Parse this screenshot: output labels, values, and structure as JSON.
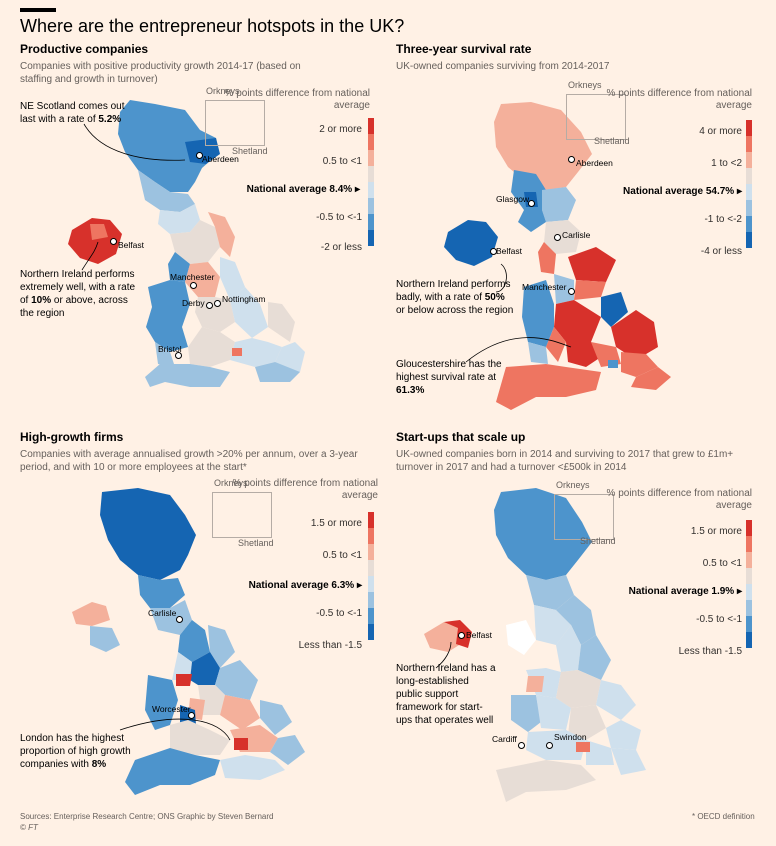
{
  "main_title": "Where are the entrepreneur hotspots in the UK?",
  "colors": {
    "red_dark": "#d7312b",
    "red_mid": "#ee7561",
    "red_light": "#f4b09b",
    "neutral": "#e7ddd6",
    "blue_light": "#cfe0ed",
    "blue_mid": "#9cc2e0",
    "blue_dark": "#4d94cc",
    "blue_deep": "#1565b2",
    "background": "#fff1e5"
  },
  "inset_labels": {
    "orkneys": "Orkneys",
    "shetland": "Shetland"
  },
  "panels": [
    {
      "title": "Productive companies",
      "subtitle": "Companies with positive productivity growth 2014-17 (based on staffing and growth in turnover)",
      "legend": {
        "title": "% points difference from national average",
        "top": "2 or more",
        "upper": "0.5 to <1",
        "national": "National average 8.4%",
        "lower": "-0.5 to <-1",
        "bottom": "-2 or less"
      },
      "annotations": [
        {
          "text_pre": "NE Scotland comes out last with a rate of ",
          "bold": "5.2%",
          "text_post": ""
        },
        {
          "text_pre": "Northern Ireland performs extremely well, with a rate of ",
          "bold": "10%",
          "text_post": " or above, across the region"
        }
      ],
      "cities": [
        "Aberdeen",
        "Belfast",
        "Manchester",
        "Nottingham",
        "Derby",
        "Bristol"
      ]
    },
    {
      "title": "Three-year survival rate",
      "subtitle": "UK-owned companies surviving from 2014-2017",
      "legend": {
        "title": "% points difference from national average",
        "top": "4 or more",
        "upper": "1 to <2",
        "national": "National average 54.7%",
        "lower": "-1 to <-2",
        "bottom": "-4 or less"
      },
      "annotations": [
        {
          "text_pre": "Northern Ireland performs badly, with a rate of ",
          "bold": "50%",
          "text_post": " or below across the region"
        },
        {
          "text_pre": "Gloucestershire has the highest survival rate at ",
          "bold": "61.3%",
          "text_post": ""
        }
      ],
      "cities": [
        "Aberdeen",
        "Glasgow",
        "Carlisle",
        "Belfast",
        "Manchester"
      ]
    },
    {
      "title": "High-growth firms",
      "subtitle": "Companies with average annualised growth >20% per annum, over a 3-year period, and with 10 or more employees at the start*",
      "legend": {
        "title": "% points difference from national average",
        "top": "1.5 or more",
        "upper": "0.5 to <1",
        "national": "National average 6.3%",
        "lower": "-0.5 to <-1",
        "bottom": "Less than -1.5"
      },
      "annotations": [
        {
          "text_pre": "London has the highest proportion of high growth companies with ",
          "bold": "8%",
          "text_post": ""
        }
      ],
      "cities": [
        "Carlisle",
        "Worcester"
      ]
    },
    {
      "title": "Start-ups that scale up",
      "subtitle": "UK-owned companies born in 2014 and surviving to 2017 that grew to £1m+ turnover in 2017 and had a turnover <£500k in 2014",
      "legend": {
        "title": "% points difference from national average",
        "top": "1.5 or more",
        "upper": "0.5 to <1",
        "national": "National average 1.9%",
        "lower": "-0.5 to <-1",
        "bottom": "Less than -1.5"
      },
      "annotations": [
        {
          "text_pre": "Northern Ireland has a long-established public support framework for start-ups that operates well",
          "bold": "",
          "text_post": ""
        }
      ],
      "cities": [
        "Belfast",
        "Cardiff",
        "Swindon"
      ]
    }
  ],
  "footer": {
    "sources": "Sources: Enterprise Research Centre; ONS   Graphic by Steven Bernard",
    "copyright": "© FT",
    "note": "* OECD definition"
  }
}
